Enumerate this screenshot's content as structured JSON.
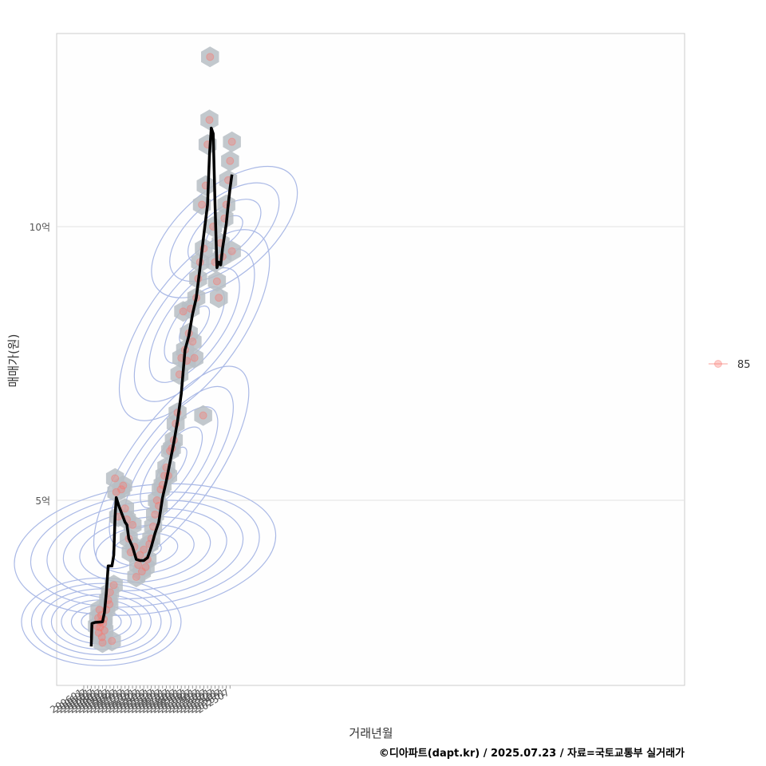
{
  "chart_data": {
    "type": "scatter",
    "xlabel": "거래년월",
    "ylabel": "매매가(원)",
    "caption": "©디아파트(dapt.kr) / 2025.07.23 / 자료=국토교통부 실거래가",
    "x_ticks": [
      "200601",
      "200607",
      "200701",
      "200707",
      "200801",
      "200807",
      "200901",
      "200907",
      "201001",
      "201007",
      "201101",
      "201107",
      "201201",
      "201207",
      "201301",
      "201307",
      "201401",
      "201407",
      "201501",
      "201507",
      "201601",
      "201607",
      "201701",
      "201707",
      "201801",
      "201807",
      "201901",
      "201907",
      "202001",
      "202007",
      "202101",
      "202107",
      "202201",
      "202207",
      "202301",
      "202307",
      "202401",
      "202407",
      "202501",
      "202507"
    ],
    "y_ticks": [
      {
        "value": 500000000,
        "label": "5억"
      },
      {
        "value": 1000000000,
        "label": "10억"
      }
    ],
    "ylim": [
      170000000,
      1340000000
    ],
    "grid": true,
    "legend": {
      "position": "right",
      "entries": [
        "85"
      ]
    },
    "trend_line": {
      "name": "",
      "points": [
        [
          "2007-01",
          233000000
        ],
        [
          "2007-02",
          275000000
        ],
        [
          "2007-07",
          277000000
        ],
        [
          "2008-07",
          278000000
        ],
        [
          "2008-10",
          295000000
        ],
        [
          "2009-01",
          330000000
        ],
        [
          "2009-04",
          380000000
        ],
        [
          "2009-10",
          380000000
        ],
        [
          "2010-01",
          400000000
        ],
        [
          "2010-03",
          470000000
        ],
        [
          "2010-05",
          505000000
        ],
        [
          "2010-09",
          490000000
        ],
        [
          "2011-03",
          472000000
        ],
        [
          "2011-07",
          460000000
        ],
        [
          "2011-10",
          455000000
        ],
        [
          "2012-01",
          430000000
        ],
        [
          "2012-07",
          415000000
        ],
        [
          "2013-01",
          392000000
        ],
        [
          "2013-07",
          390000000
        ],
        [
          "2014-01",
          390000000
        ],
        [
          "2014-07",
          395000000
        ],
        [
          "2015-01",
          415000000
        ],
        [
          "2015-07",
          440000000
        ],
        [
          "2016-01",
          460000000
        ],
        [
          "2016-07",
          505000000
        ],
        [
          "2017-01",
          535000000
        ],
        [
          "2017-07",
          570000000
        ],
        [
          "2018-01",
          605000000
        ],
        [
          "2018-07",
          645000000
        ],
        [
          "2019-01",
          695000000
        ],
        [
          "2019-07",
          775000000
        ],
        [
          "2020-01",
          800000000
        ],
        [
          "2020-07",
          840000000
        ],
        [
          "2021-01",
          870000000
        ],
        [
          "2021-07",
          925000000
        ],
        [
          "2022-01",
          985000000
        ],
        [
          "2022-07",
          1040000000
        ],
        [
          "2022-10",
          1130000000
        ],
        [
          "2023-01",
          1180000000
        ],
        [
          "2023-04",
          1170000000
        ],
        [
          "2023-07",
          1040000000
        ],
        [
          "2023-10",
          925000000
        ],
        [
          "2024-01",
          935000000
        ],
        [
          "2024-04",
          930000000
        ],
        [
          "2024-07",
          960000000
        ],
        [
          "2025-01",
          1005000000
        ],
        [
          "2025-04",
          1040000000
        ],
        [
          "2025-07",
          1070000000
        ],
        [
          "2025-10",
          1095000000
        ]
      ]
    },
    "points": [
      [
        "2007-10",
        270000000
      ],
      [
        "2007-12",
        285000000
      ],
      [
        "2008-01",
        258000000
      ],
      [
        "2008-02",
        300000000
      ],
      [
        "2008-03",
        268000000
      ],
      [
        "2008-04",
        278000000
      ],
      [
        "2008-05",
        290000000
      ],
      [
        "2008-06",
        250000000
      ],
      [
        "2008-07",
        240000000
      ],
      [
        "2008-08",
        275000000
      ],
      [
        "2008-09",
        283000000
      ],
      [
        "2008-10",
        262000000
      ],
      [
        "2009-01",
        300000000
      ],
      [
        "2009-04",
        318000000
      ],
      [
        "2009-06",
        310000000
      ],
      [
        "2009-07",
        332000000
      ],
      [
        "2009-10",
        243000000
      ],
      [
        "2010-01",
        345000000
      ],
      [
        "2010-03",
        540000000
      ],
      [
        "2010-05",
        515000000
      ],
      [
        "2010-08",
        470000000
      ],
      [
        "2011-01",
        520000000
      ],
      [
        "2011-04",
        527000000
      ],
      [
        "2011-07",
        485000000
      ],
      [
        "2011-10",
        465000000
      ],
      [
        "2012-01",
        430000000
      ],
      [
        "2012-04",
        405000000
      ],
      [
        "2012-07",
        455000000
      ],
      [
        "2012-10",
        415000000
      ],
      [
        "2013-01",
        360000000
      ],
      [
        "2013-04",
        382000000
      ],
      [
        "2013-07",
        400000000
      ],
      [
        "2013-10",
        370000000
      ],
      [
        "2014-01",
        410000000
      ],
      [
        "2014-04",
        378000000
      ],
      [
        "2014-07",
        392000000
      ],
      [
        "2014-10",
        420000000
      ],
      [
        "2015-01",
        430000000
      ],
      [
        "2015-04",
        452000000
      ],
      [
        "2015-07",
        474000000
      ],
      [
        "2015-10",
        500000000
      ],
      [
        "2016-01",
        490000000
      ],
      [
        "2016-04",
        520000000
      ],
      [
        "2016-07",
        528000000
      ],
      [
        "2016-10",
        545000000
      ],
      [
        "2017-01",
        560000000
      ],
      [
        "2017-04",
        545000000
      ],
      [
        "2017-07",
        590000000
      ],
      [
        "2017-10",
        595000000
      ],
      [
        "2018-01",
        610000000
      ],
      [
        "2018-04",
        640000000
      ],
      [
        "2018-07",
        660000000
      ],
      [
        "2018-10",
        730000000
      ],
      [
        "2019-01",
        760000000
      ],
      [
        "2019-04",
        845000000
      ],
      [
        "2019-07",
        775000000
      ],
      [
        "2019-10",
        755000000
      ],
      [
        "2020-01",
        805000000
      ],
      [
        "2020-04",
        850000000
      ],
      [
        "2020-07",
        790000000
      ],
      [
        "2020-10",
        760000000
      ],
      [
        "2021-01",
        870000000
      ],
      [
        "2021-04",
        905000000
      ],
      [
        "2021-07",
        935000000
      ],
      [
        "2021-10",
        1040000000
      ],
      [
        "2021-12",
        655000000
      ],
      [
        "2022-01",
        960000000
      ],
      [
        "2022-04",
        1075000000
      ],
      [
        "2022-07",
        1150000000
      ],
      [
        "2022-10",
        1195000000
      ],
      [
        "2022-11",
        1310000000
      ],
      [
        "2023-04",
        1000000000
      ],
      [
        "2023-07",
        935000000
      ],
      [
        "2023-10",
        900000000
      ],
      [
        "2024-01",
        870000000
      ],
      [
        "2024-04",
        970000000
      ],
      [
        "2024-07",
        945000000
      ],
      [
        "2024-10",
        1015000000
      ],
      [
        "2025-01",
        1040000000
      ],
      [
        "2025-04",
        1085000000
      ],
      [
        "2025-07",
        1120000000
      ],
      [
        "2025-10",
        1155000000
      ],
      [
        "2025-10",
        955000000
      ]
    ],
    "colors": {
      "points": "#f8766d",
      "trend": "#000000",
      "contour": "#aab9e6",
      "hex": "#b7bec4",
      "grid": "#e3e3e3",
      "panel_border": "#cccccc"
    }
  }
}
